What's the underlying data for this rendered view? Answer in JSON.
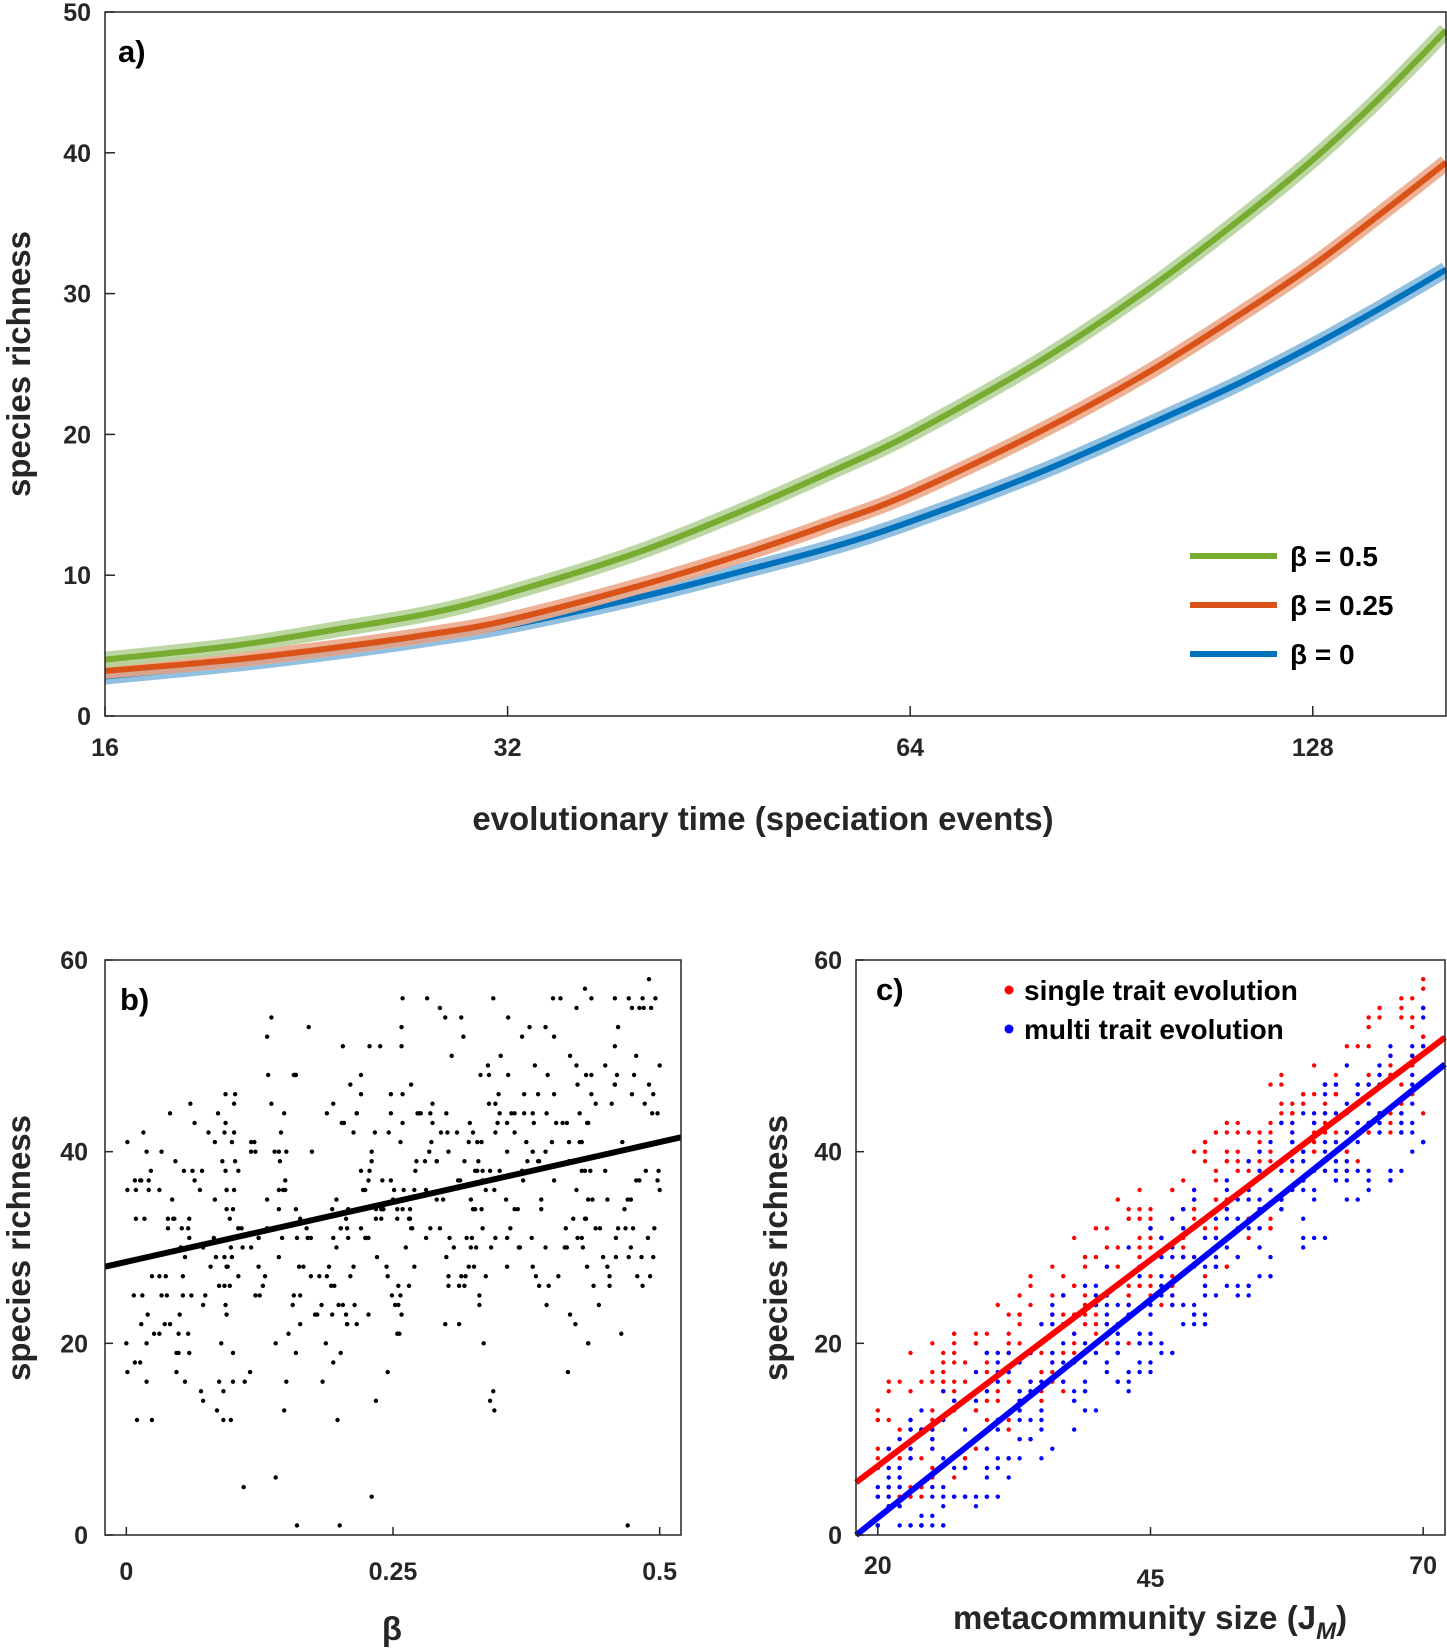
{
  "chart_data": [
    {
      "panel_label": "a)",
      "type": "line",
      "xlabel": "evolutionary time (speciation events)",
      "ylabel": "species richness",
      "xscale": "log2",
      "xticks": [
        "16",
        "32",
        "64",
        "128"
      ],
      "xlim": [
        16,
        161
      ],
      "ylim": [
        0,
        50
      ],
      "yticks": [
        "0",
        "10",
        "20",
        "30",
        "40",
        "50"
      ],
      "grid": false,
      "legend_position": "bottom-right",
      "legend": [
        "β = 0.5",
        "β = 0.25",
        "β = 0"
      ],
      "series": [
        {
          "name": "β = 0.5",
          "color": "#77ac30",
          "band_color": "#b5d39a",
          "x": [
            16,
            20,
            24,
            28,
            32,
            40,
            48,
            56,
            64,
            80,
            96,
            112,
            128,
            144,
            161
          ],
          "y": [
            4.0,
            5.0,
            6.2,
            7.3,
            8.7,
            11.6,
            14.6,
            17.4,
            20.0,
            25.2,
            30.2,
            35.0,
            39.5,
            44.0,
            48.7
          ]
        },
        {
          "name": "β = 0.25",
          "color": "#d95319",
          "band_color": "#eca98a",
          "x": [
            16,
            20,
            24,
            28,
            32,
            40,
            48,
            56,
            64,
            80,
            96,
            112,
            128,
            144,
            161
          ],
          "y": [
            3.2,
            4.0,
            4.9,
            5.8,
            6.8,
            9.2,
            11.5,
            13.7,
            15.8,
            20.2,
            24.3,
            28.3,
            32.0,
            35.7,
            39.3
          ]
        },
        {
          "name": "β = 0",
          "color": "#0072bd",
          "band_color": "#86b9de",
          "x": [
            16,
            20,
            24,
            28,
            32,
            40,
            48,
            56,
            64,
            80,
            96,
            112,
            128,
            144,
            161
          ],
          "y": [
            2.8,
            3.7,
            4.6,
            5.5,
            6.4,
            8.4,
            10.3,
            12.0,
            13.8,
            17.3,
            20.6,
            23.5,
            26.3,
            29.0,
            31.7
          ]
        }
      ]
    },
    {
      "panel_label": "b)",
      "type": "scatter",
      "xlabel": "β",
      "ylabel": "species richness",
      "xlim": [
        -0.02,
        0.52
      ],
      "ylim": [
        0,
        60
      ],
      "xticks": [
        "0",
        "0.25",
        "0.5"
      ],
      "yticks": [
        "0",
        "20",
        "40",
        "60"
      ],
      "grid": false,
      "point_color": "#000000",
      "n_points": 520,
      "fit_line": {
        "intercept": 28.5,
        "slope": 25.0,
        "color": "#000000"
      },
      "notable_points": [
        {
          "x": 0.01,
          "y": 12
        },
        {
          "x": 0.11,
          "y": 5
        },
        {
          "x": 0.14,
          "y": 6
        },
        {
          "x": 0.16,
          "y": 1
        },
        {
          "x": 0.2,
          "y": 1
        },
        {
          "x": 0.23,
          "y": 4
        },
        {
          "x": 0.47,
          "y": 1
        },
        {
          "x": 0.49,
          "y": 58
        },
        {
          "x": 0.43,
          "y": 57
        }
      ]
    },
    {
      "panel_label": "c)",
      "type": "scatter",
      "xlabel": "metacommunity size (J",
      "xlabel_sub": "M",
      "xlabel_close": ")",
      "ylabel": "species richness",
      "xlim": [
        18,
        72
      ],
      "ylim": [
        0,
        60
      ],
      "xticks": [
        "20",
        "45",
        "70"
      ],
      "yticks": [
        "0",
        "20",
        "40",
        "60"
      ],
      "grid": false,
      "legend_position": "top-left",
      "series": [
        {
          "name": "single trait evolution",
          "color": "#ff0000",
          "fit_line": {
            "intercept": -10.0,
            "slope": 0.86
          }
        },
        {
          "name": "multi trait evolution",
          "color": "#0000ff",
          "fit_line": {
            "intercept": -16.4,
            "slope": 0.91
          }
        }
      ]
    }
  ]
}
